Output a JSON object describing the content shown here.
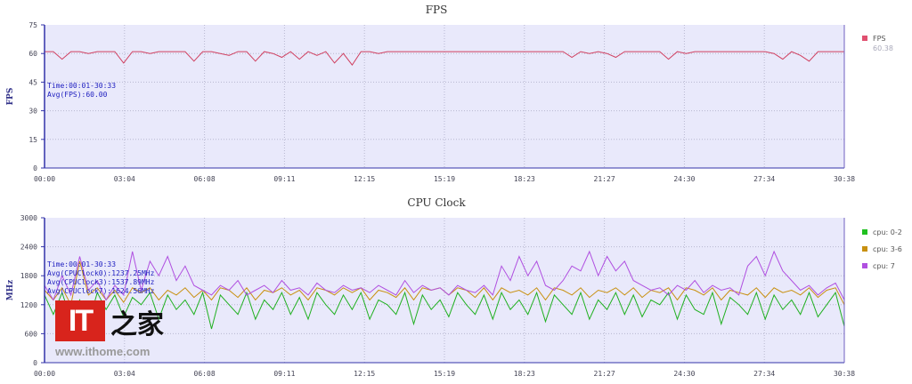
{
  "chart_data": [
    {
      "type": "line",
      "title": "FPS",
      "ylabel": "FPS",
      "xlabel": "",
      "ylim": [
        0,
        75
      ],
      "yticks": [
        0,
        15,
        30,
        45,
        60,
        75
      ],
      "xticks": [
        "00:00",
        "03:04",
        "06:08",
        "09:11",
        "12:15",
        "15:19",
        "18:23",
        "21:27",
        "24:30",
        "27:34",
        "30:38"
      ],
      "duration_s": 1838,
      "annotation": [
        "Time:00:01-30:33",
        "Avg(FPS):60.00"
      ],
      "legend": [
        {
          "label": "FPS",
          "value": "60.38",
          "color": "#e05070"
        }
      ],
      "series": [
        {
          "name": "FPS",
          "color": "#d04060",
          "values": [
            61,
            61,
            57,
            61,
            61,
            60,
            61,
            61,
            61,
            55,
            61,
            61,
            60,
            61,
            61,
            61,
            61,
            56,
            61,
            61,
            60,
            59,
            61,
            61,
            56,
            61,
            60,
            58,
            61,
            57,
            61,
            59,
            61,
            55,
            60,
            54,
            61,
            61,
            60,
            61,
            61,
            61,
            61,
            61,
            61,
            61,
            61,
            61,
            61,
            61,
            61,
            61,
            61,
            61,
            61,
            61,
            61,
            61,
            61,
            61,
            58,
            61,
            60,
            61,
            60,
            58,
            61,
            61,
            61,
            61,
            61,
            57,
            61,
            60,
            61,
            61,
            61,
            61,
            61,
            61,
            61,
            61,
            61,
            60,
            57,
            61,
            59,
            56,
            61,
            61,
            61,
            61
          ]
        }
      ]
    },
    {
      "type": "line",
      "title": "CPU Clock",
      "ylabel": "MHz",
      "xlabel": "",
      "ylim": [
        0,
        3000
      ],
      "yticks": [
        0,
        600,
        1200,
        1800,
        2400,
        3000
      ],
      "xticks": [
        "00:00",
        "03:04",
        "06:08",
        "09:11",
        "12:15",
        "15:19",
        "18:23",
        "21:27",
        "24:30",
        "27:34",
        "30:38"
      ],
      "duration_s": 1838,
      "annotation": [
        "Time:00:01-30:33",
        "Avg(CPUClock0):1237.25MHz",
        "Avg(CPUClock3):1537.89MHz",
        "Avg(CPUClock7):1624.56MHz"
      ],
      "legend": [
        {
          "label": "cpu: 0-2",
          "color": "#20c020"
        },
        {
          "label": "cpu: 3-6",
          "color": "#c89010"
        },
        {
          "label": "cpu: 7",
          "color": "#b050e0"
        }
      ],
      "series": [
        {
          "name": "cpu: 0-2",
          "color": "#20b020",
          "values": [
            1400,
            1000,
            1450,
            900,
            1300,
            800,
            1450,
            1100,
            1400,
            950,
            1350,
            1200,
            1450,
            900,
            1400,
            1100,
            1300,
            1000,
            1450,
            700,
            1400,
            1200,
            1000,
            1450,
            900,
            1300,
            1100,
            1450,
            1000,
            1350,
            900,
            1450,
            1200,
            1000,
            1400,
            1100,
            1450,
            900,
            1300,
            1200,
            1000,
            1450,
            800,
            1400,
            1100,
            1300,
            950,
            1450,
            1200,
            1000,
            1400,
            900,
            1450,
            1100,
            1300,
            1000,
            1450,
            850,
            1400,
            1200,
            1000,
            1450,
            900,
            1300,
            1100,
            1450,
            1000,
            1400,
            950,
            1300,
            1200,
            1450,
            900,
            1400,
            1100,
            1000,
            1450,
            800,
            1350,
            1200,
            1000,
            1450,
            900,
            1400,
            1100,
            1300,
            1000,
            1450,
            950,
            1200,
            1450,
            750
          ]
        },
        {
          "name": "cpu: 3-6",
          "color": "#c89010",
          "values": [
            1500,
            1300,
            1550,
            1200,
            2100,
            1400,
            1550,
            1300,
            1500,
            1250,
            1550,
            1450,
            1550,
            1300,
            1500,
            1400,
            1550,
            1350,
            1500,
            1300,
            1550,
            1500,
            1350,
            1550,
            1300,
            1500,
            1450,
            1550,
            1400,
            1500,
            1300,
            1550,
            1500,
            1400,
            1550,
            1450,
            1550,
            1300,
            1500,
            1450,
            1350,
            1550,
            1300,
            1550,
            1500,
            1550,
            1400,
            1550,
            1500,
            1350,
            1550,
            1300,
            1550,
            1450,
            1500,
            1400,
            1550,
            1300,
            1550,
            1500,
            1400,
            1550,
            1350,
            1500,
            1450,
            1550,
            1400,
            1550,
            1350,
            1500,
            1450,
            1550,
            1300,
            1550,
            1500,
            1400,
            1550,
            1300,
            1500,
            1450,
            1400,
            1550,
            1350,
            1550,
            1450,
            1500,
            1400,
            1550,
            1350,
            1500,
            1550,
            1200
          ]
        },
        {
          "name": "cpu: 7",
          "color": "#b050e0",
          "values": [
            1600,
            1300,
            1800,
            1400,
            2200,
            1500,
            1700,
            1300,
            1600,
            1400,
            2300,
            1500,
            2100,
            1800,
            2200,
            1700,
            2000,
            1600,
            1500,
            1400,
            1600,
            1500,
            1700,
            1400,
            1500,
            1600,
            1450,
            1700,
            1500,
            1550,
            1400,
            1650,
            1500,
            1450,
            1600,
            1500,
            1550,
            1450,
            1600,
            1500,
            1400,
            1700,
            1450,
            1600,
            1500,
            1550,
            1400,
            1600,
            1500,
            1450,
            1600,
            1400,
            2000,
            1700,
            2200,
            1800,
            2100,
            1600,
            1500,
            1700,
            2000,
            1900,
            2300,
            1800,
            2200,
            1900,
            2100,
            1700,
            1600,
            1500,
            1550,
            1400,
            1600,
            1500,
            1700,
            1450,
            1600,
            1500,
            1550,
            1400,
            2000,
            2200,
            1800,
            2300,
            1900,
            1700,
            1500,
            1600,
            1400,
            1550,
            1650,
            1300
          ]
        }
      ]
    }
  ],
  "watermark": {
    "logo_text": "IT",
    "logo_cn": "之家",
    "url": "www.ithome.com"
  }
}
